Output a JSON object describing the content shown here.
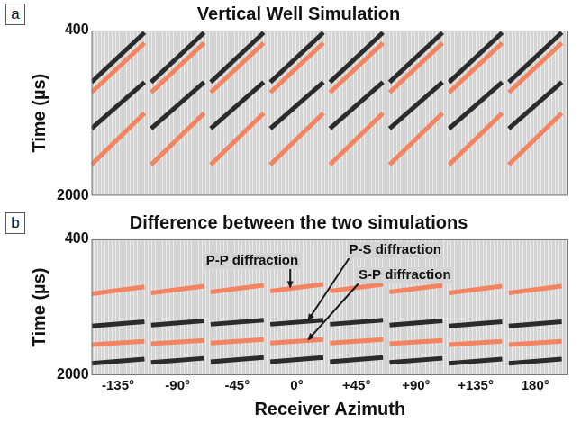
{
  "chart_data": [
    {
      "type": "line",
      "panel_label": "a",
      "title": "Vertical Well Simulation",
      "y_label": "Time (µs)",
      "xlim": [
        -155,
        205
      ],
      "ylim": [
        2000,
        400
      ],
      "yticks": [
        400,
        2000
      ],
      "tick_labels": "y",
      "grid": false,
      "x": [
        -155,
        -115,
        null,
        -110,
        -70,
        null,
        -65,
        -25,
        null,
        -20,
        20,
        null,
        25,
        65,
        null,
        70,
        110,
        null,
        115,
        155,
        null,
        160,
        200
      ],
      "series": [
        {
          "color": "#2b2b2b",
          "values": [
            900,
            420,
            null,
            900,
            420,
            null,
            900,
            420,
            null,
            900,
            420,
            null,
            900,
            420,
            null,
            900,
            420,
            null,
            900,
            420,
            null,
            900,
            420
          ]
        },
        {
          "color": "#f4845f",
          "values": [
            1000,
            520,
            null,
            1000,
            520,
            null,
            1000,
            520,
            null,
            1000,
            520,
            null,
            1000,
            520,
            null,
            1000,
            520,
            null,
            1000,
            520,
            null,
            1000,
            520
          ]
        },
        {
          "color": "#2b2b2b",
          "values": [
            1350,
            900,
            null,
            1350,
            900,
            null,
            1350,
            900,
            null,
            1350,
            900,
            null,
            1350,
            900,
            null,
            1350,
            900,
            null,
            1350,
            900,
            null,
            1350,
            900
          ]
        },
        {
          "color": "#f4845f",
          "values": [
            1700,
            1200,
            null,
            1700,
            1200,
            null,
            1700,
            1200,
            null,
            1700,
            1200,
            null,
            1700,
            1200,
            null,
            1700,
            1200,
            null,
            1700,
            1200,
            null,
            1700,
            1200
          ]
        }
      ]
    },
    {
      "type": "line",
      "panel_label": "b",
      "title": "Difference between the two simulations",
      "y_label": "Time (µs)",
      "x_label": "Receiver Azimuth",
      "xlim": [
        -155,
        205
      ],
      "xticks": [
        {
          "value": -135,
          "label": "-135°"
        },
        {
          "value": -90,
          "label": "-90°"
        },
        {
          "value": -45,
          "label": "-45°"
        },
        {
          "value": 0,
          "label": "0°"
        },
        {
          "value": 45,
          "label": "+45°"
        },
        {
          "value": 90,
          "label": "+90°"
        },
        {
          "value": 135,
          "label": "+135°"
        },
        {
          "value": 180,
          "label": "180°"
        }
      ],
      "ylim": [
        2000,
        400
      ],
      "yticks": [
        400,
        2000
      ],
      "grid": false,
      "x": [
        -155,
        -115,
        null,
        -110,
        -70,
        null,
        -65,
        -25,
        null,
        -20,
        20,
        null,
        25,
        65,
        null,
        70,
        110,
        null,
        115,
        155,
        null,
        160,
        200
      ],
      "series": [
        {
          "color": "#f4845f",
          "values": [
            1040,
            960,
            null,
            1030,
            950,
            null,
            1020,
            940,
            null,
            1010,
            930,
            null,
            1010,
            930,
            null,
            1020,
            940,
            null,
            1030,
            950,
            null,
            1030,
            950
          ]
        },
        {
          "color": "#2b2b2b",
          "values": [
            1420,
            1370,
            null,
            1410,
            1360,
            null,
            1400,
            1350,
            null,
            1400,
            1350,
            null,
            1400,
            1350,
            null,
            1410,
            1360,
            null,
            1420,
            1370,
            null,
            1420,
            1370
          ]
        },
        {
          "color": "#f4845f",
          "values": [
            1640,
            1600,
            null,
            1630,
            1590,
            null,
            1620,
            1580,
            null,
            1620,
            1580,
            null,
            1620,
            1580,
            null,
            1630,
            1590,
            null,
            1640,
            1600,
            null,
            1640,
            1600
          ]
        },
        {
          "color": "#2b2b2b",
          "values": [
            1860,
            1810,
            null,
            1850,
            1800,
            null,
            1840,
            1790,
            null,
            1840,
            1790,
            null,
            1840,
            1790,
            null,
            1850,
            1800,
            null,
            1860,
            1810,
            null,
            1860,
            1810
          ]
        }
      ],
      "annotations": [
        {
          "text": "P-P diffraction",
          "x": -5,
          "y": 980
        },
        {
          "text": "P-S diffraction",
          "x": 8,
          "y": 1365
        },
        {
          "text": "S-P diffraction",
          "x": 8,
          "y": 1592
        }
      ]
    }
  ]
}
